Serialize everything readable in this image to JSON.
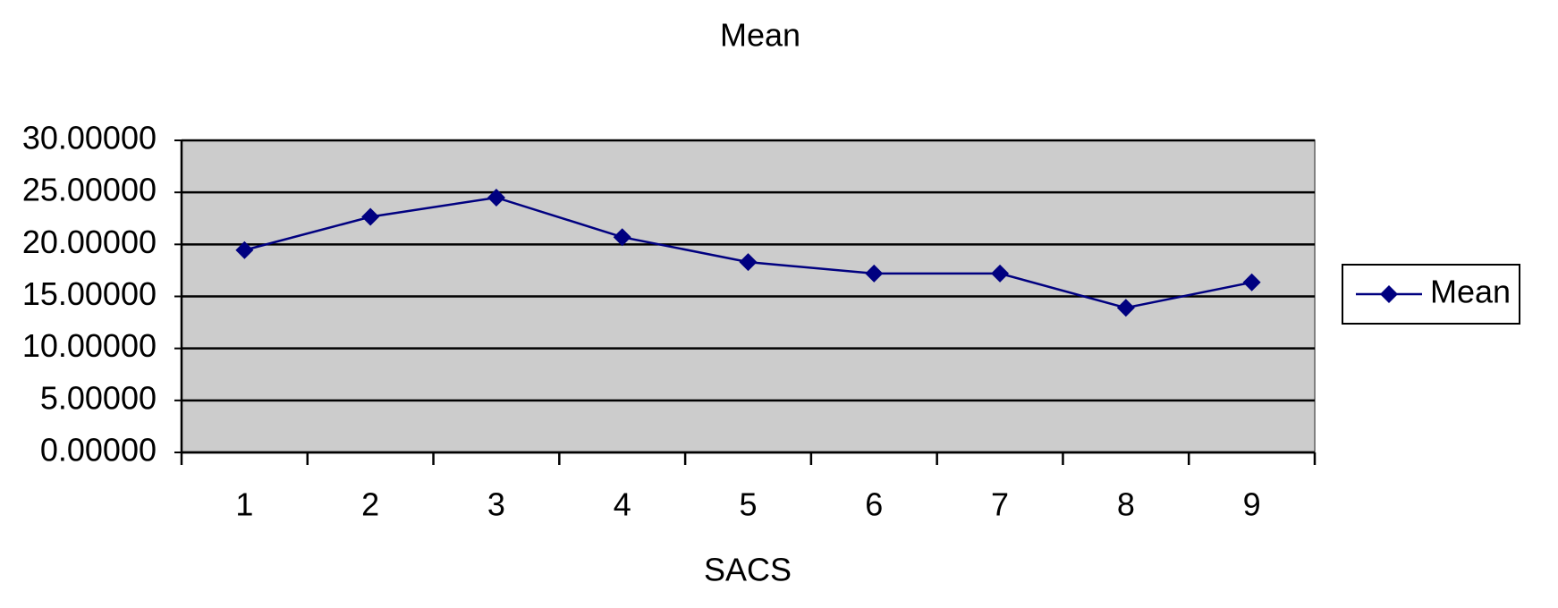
{
  "chart_data": {
    "type": "line",
    "title": "Mean",
    "x_label": "SACS",
    "categories": [
      "1",
      "2",
      "3",
      "4",
      "5",
      "6",
      "7",
      "8",
      "9"
    ],
    "series": [
      {
        "name": "Mean",
        "color": "#000080",
        "values": [
          19.45,
          22.65,
          24.5,
          20.7,
          18.3,
          17.2,
          17.2,
          13.9,
          16.35
        ]
      }
    ],
    "ylim": [
      0,
      30
    ],
    "yticks": [
      {
        "value": 0,
        "label": "0.00000"
      },
      {
        "value": 5,
        "label": "5.00000"
      },
      {
        "value": 10,
        "label": "10.00000"
      },
      {
        "value": 15,
        "label": "15.00000"
      },
      {
        "value": 20,
        "label": "20.00000"
      },
      {
        "value": 25,
        "label": "25.00000"
      },
      {
        "value": 30,
        "label": "30.00000"
      }
    ],
    "grid": true,
    "legend": "right"
  }
}
